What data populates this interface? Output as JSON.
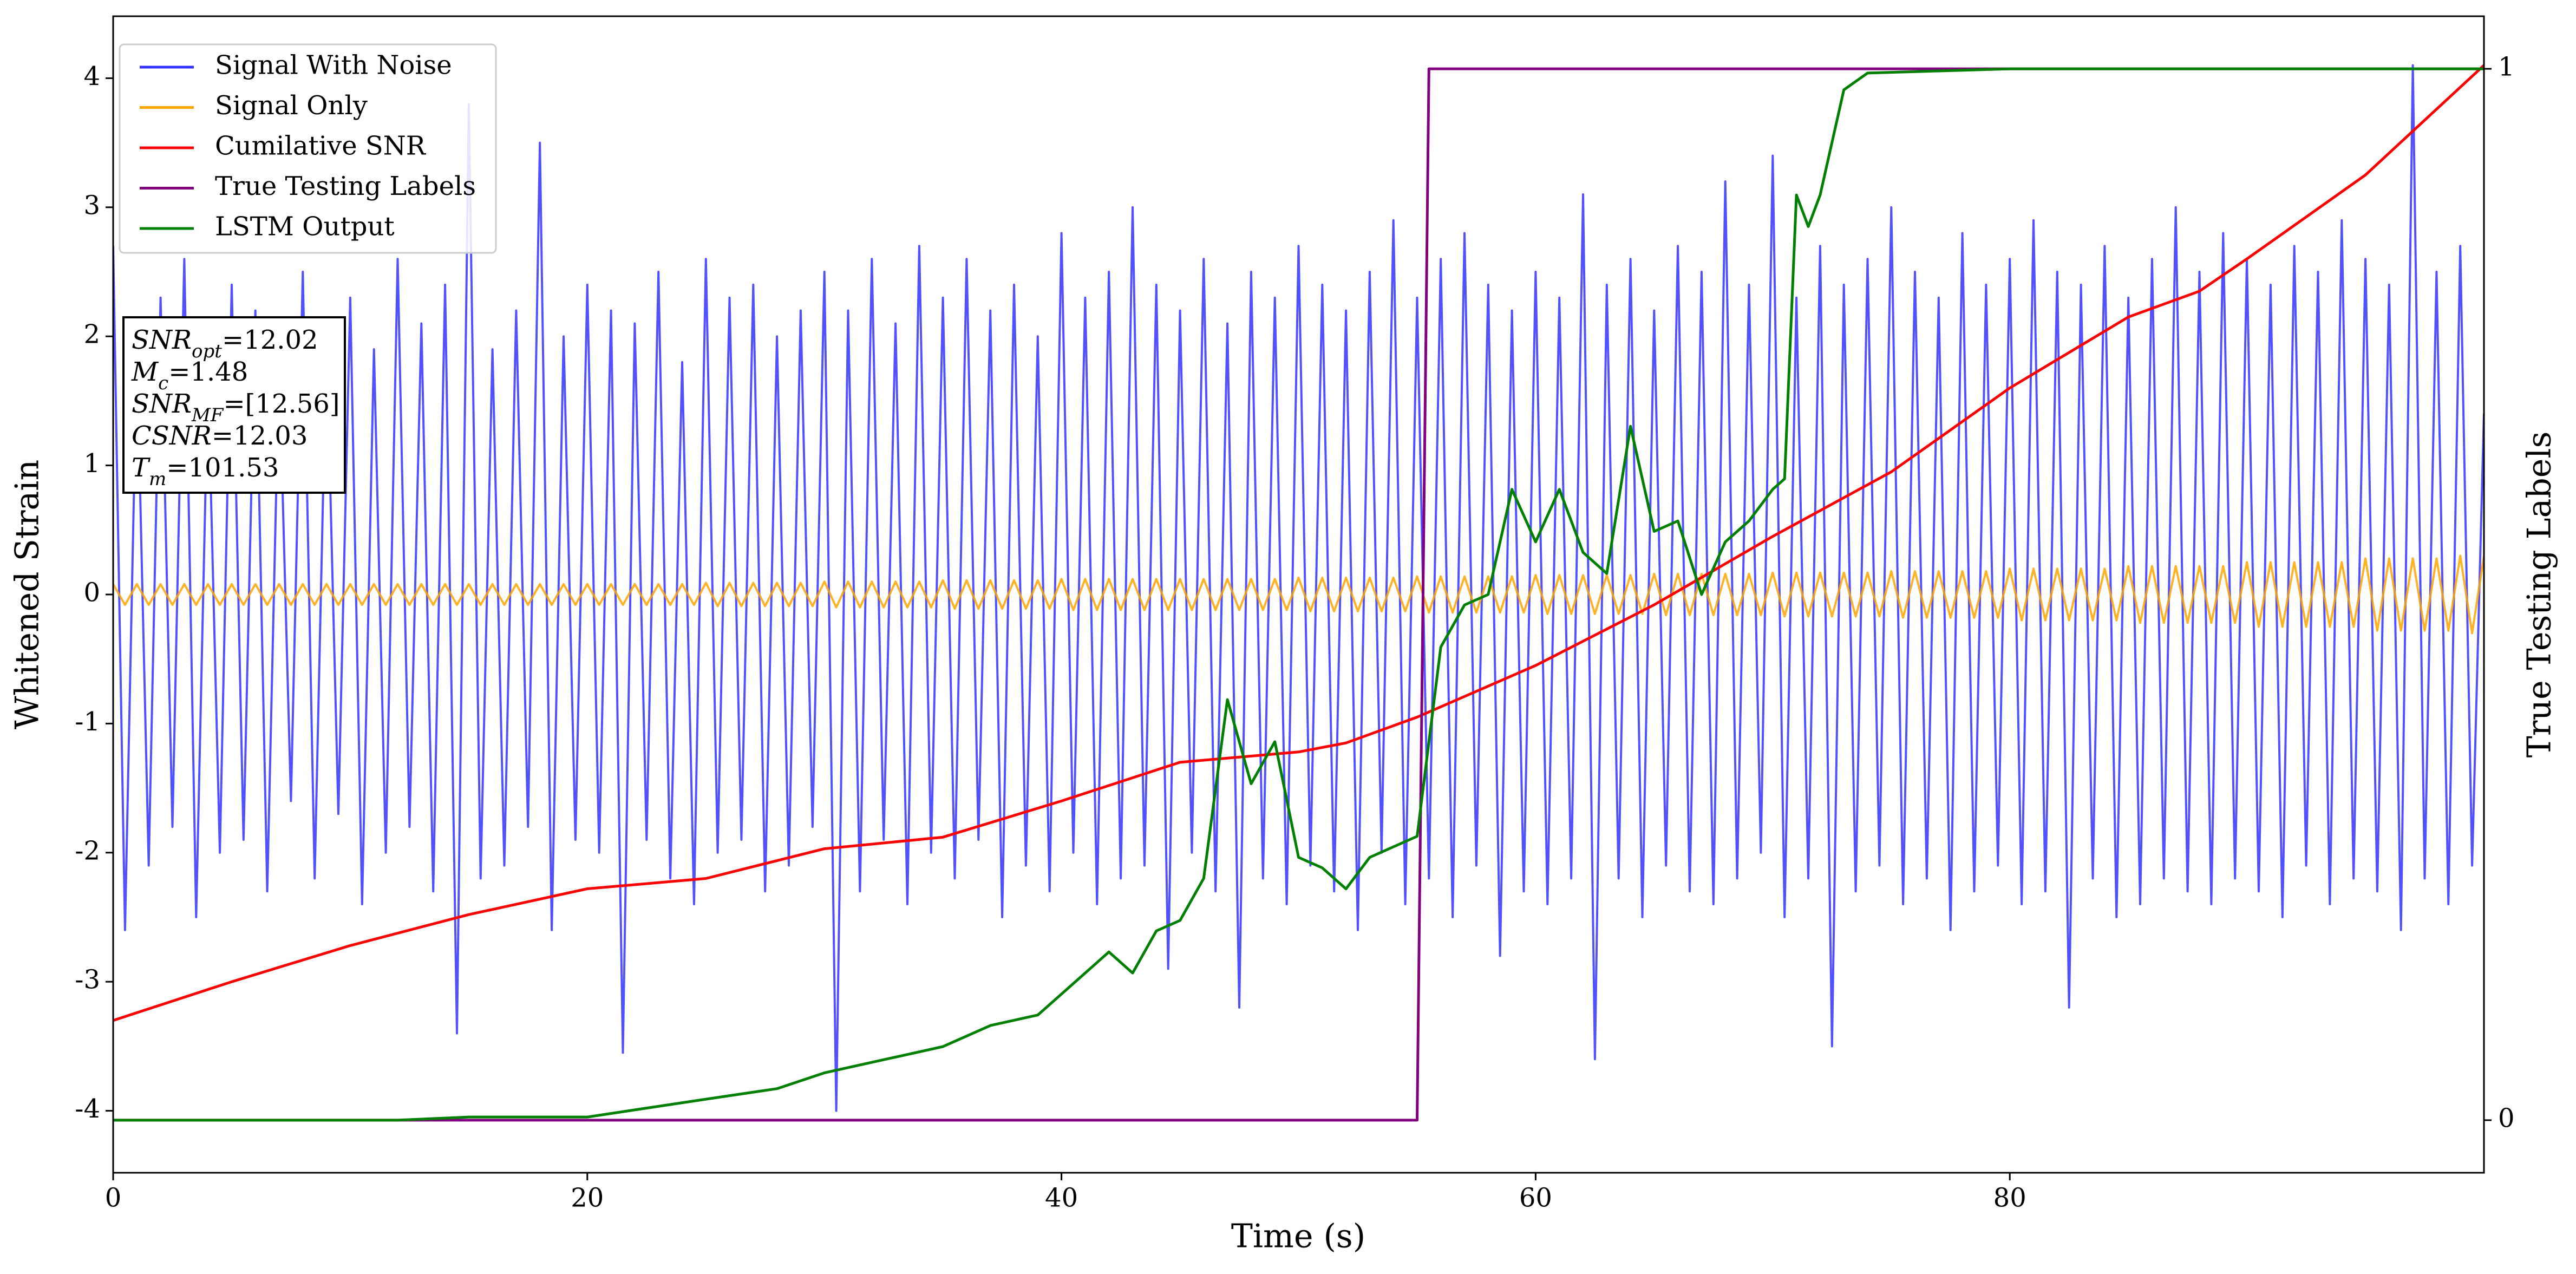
{
  "chart_data": {
    "type": "line",
    "xlabel": "Time (s)",
    "ylabel": "Whitened Strain",
    "y2label": "True Testing Labels",
    "xlim": [
      0,
      100
    ],
    "ylim": [
      -4.48,
      4.48
    ],
    "y2lim": [
      -0.05,
      1.05
    ],
    "xticks": [
      0,
      20,
      40,
      60,
      80
    ],
    "yticks": [
      -4,
      -3,
      -2,
      -1,
      0,
      1,
      2,
      3,
      4
    ],
    "y2ticks": [
      0,
      1
    ],
    "legend": "upper left",
    "x": [
      0,
      0.5,
      1,
      1.5,
      2,
      2.5,
      3,
      3.5,
      4,
      4.5,
      5,
      5.5,
      6,
      6.5,
      7,
      7.5,
      8,
      8.5,
      9,
      9.5,
      10,
      10.5,
      11,
      11.5,
      12,
      12.5,
      13,
      13.5,
      14,
      14.5,
      15,
      15.5,
      16,
      16.5,
      17,
      17.5,
      18,
      18.5,
      19,
      19.5,
      20,
      20.5,
      21,
      21.5,
      22,
      22.5,
      23,
      23.5,
      24,
      24.5,
      25,
      25.5,
      26,
      26.5,
      27,
      27.5,
      28,
      28.5,
      29,
      29.5,
      30,
      30.5,
      31,
      31.5,
      32,
      32.5,
      33,
      33.5,
      34,
      34.5,
      35,
      35.5,
      36,
      36.5,
      37,
      37.5,
      38,
      38.5,
      39,
      39.5,
      40,
      40.5,
      41,
      41.5,
      42,
      42.5,
      43,
      43.5,
      44,
      44.5,
      45,
      45.5,
      46,
      46.5,
      47,
      47.5,
      48,
      48.5,
      49,
      49.5,
      50,
      50.5,
      51,
      51.5,
      52,
      52.5,
      53,
      53.5,
      54,
      54.5,
      55,
      55.5,
      56,
      56.5,
      57,
      57.5,
      58,
      58.5,
      59,
      59.5,
      60,
      60.5,
      61,
      61.5,
      62,
      62.5,
      63,
      63.5,
      64,
      64.5,
      65,
      65.5,
      66,
      66.5,
      67,
      67.5,
      68,
      68.5,
      69,
      69.5,
      70,
      70.5,
      71,
      71.5,
      72,
      72.5,
      73,
      73.5,
      74,
      74.5,
      75,
      75.5,
      76,
      76.5,
      77,
      77.5,
      78,
      78.5,
      79,
      79.5,
      80,
      80.5,
      81,
      81.5,
      82,
      82.5,
      83,
      83.5,
      84,
      84.5,
      85,
      85.5,
      86,
      86.5,
      87,
      87.5,
      88,
      88.5,
      89,
      89.5,
      90,
      90.5,
      91,
      91.5,
      92,
      92.5,
      93,
      93.5,
      94,
      94.5,
      95,
      95.5,
      96,
      96.5,
      97,
      97.5,
      98,
      98.5,
      99,
      99.5,
      100
    ],
    "series": [
      {
        "name": "Signal With Noise",
        "color": "#3333ff",
        "values": [
          2.7,
          -2.6,
          1.9,
          -2.1,
          2.3,
          -1.8,
          2.6,
          -2.5,
          1.7,
          -2.0,
          2.4,
          -1.9,
          2.2,
          -2.3,
          1.8,
          -1.6,
          2.5,
          -2.2,
          2.0,
          -1.7,
          2.3,
          -2.4,
          1.9,
          -2.0,
          2.6,
          -1.8,
          2.1,
          -2.3,
          2.4,
          -3.4,
          3.8,
          -2.2,
          1.9,
          -2.1,
          2.2,
          -1.8,
          3.5,
          -2.6,
          2.0,
          -1.9,
          2.4,
          -2.0,
          2.2,
          -3.55,
          2.1,
          -1.9,
          2.5,
          -2.2,
          1.8,
          -2.4,
          2.6,
          -2.0,
          2.3,
          -1.9,
          2.4,
          -2.3,
          2.0,
          -2.1,
          2.2,
          -1.8,
          2.5,
          -4.0,
          2.2,
          -2.3,
          2.6,
          -1.9,
          2.1,
          -2.4,
          2.7,
          -2.0,
          2.3,
          -2.2,
          2.6,
          -1.9,
          2.2,
          -2.5,
          2.4,
          -2.1,
          2.0,
          -2.3,
          2.8,
          -2.0,
          2.3,
          -2.4,
          2.5,
          -2.2,
          3.0,
          -2.1,
          2.4,
          -2.9,
          2.2,
          -2.0,
          2.6,
          -2.3,
          2.1,
          -3.2,
          2.5,
          -2.2,
          2.3,
          -2.4,
          2.7,
          -2.1,
          2.4,
          -2.3,
          2.2,
          -2.6,
          2.5,
          -2.0,
          2.9,
          -2.4,
          2.3,
          -2.2,
          2.6,
          -2.5,
          2.8,
          -2.1,
          2.4,
          -2.8,
          2.2,
          -2.3,
          2.5,
          -2.4,
          2.3,
          -2.2,
          3.1,
          -3.6,
          2.4,
          -2.2,
          2.6,
          -2.5,
          2.2,
          -2.1,
          2.7,
          -2.3,
          2.5,
          -2.4,
          3.2,
          -2.2,
          2.4,
          -2.0,
          3.4,
          -2.5,
          2.3,
          -2.2,
          2.7,
          -3.5,
          2.4,
          -2.3,
          2.6,
          -2.1,
          3.0,
          -2.4,
          2.5,
          -2.2,
          2.3,
          -2.6,
          2.8,
          -2.3,
          2.4,
          -2.1,
          2.6,
          -2.4,
          2.9,
          -2.3,
          2.5,
          -3.2,
          2.4,
          -2.2,
          2.7,
          -2.5,
          2.3,
          -2.4,
          2.6,
          -2.2,
          3.0,
          -2.3,
          2.5,
          -2.4,
          2.8,
          -2.2,
          2.6,
          -2.3,
          2.4,
          -2.5,
          2.7,
          -2.1,
          2.5,
          -2.4,
          2.9,
          -2.2,
          2.6,
          -2.3,
          2.4,
          -2.6,
          4.1,
          -2.2,
          2.5,
          -2.4,
          2.7,
          -2.1,
          1.4
        ]
      },
      {
        "name": "Signal Only",
        "color": "#ffa500",
        "values": [
          0.08,
          -0.08,
          0.08,
          -0.08,
          0.08,
          -0.08,
          0.08,
          -0.08,
          0.08,
          -0.08,
          0.08,
          -0.08,
          0.08,
          -0.08,
          0.08,
          -0.08,
          0.08,
          -0.08,
          0.08,
          -0.08,
          0.08,
          -0.08,
          0.08,
          -0.08,
          0.08,
          -0.08,
          0.08,
          -0.08,
          0.08,
          -0.08,
          0.08,
          -0.08,
          0.08,
          -0.08,
          0.08,
          -0.08,
          0.08,
          -0.08,
          0.08,
          -0.08,
          0.08,
          -0.08,
          0.08,
          -0.08,
          0.08,
          -0.08,
          0.08,
          -0.08,
          0.08,
          -0.08,
          0.09,
          -0.09,
          0.09,
          -0.09,
          0.09,
          -0.09,
          0.09,
          -0.09,
          0.09,
          -0.09,
          0.1,
          -0.1,
          0.1,
          -0.1,
          0.1,
          -0.1,
          0.1,
          -0.1,
          0.1,
          -0.1,
          0.11,
          -0.11,
          0.11,
          -0.11,
          0.11,
          -0.11,
          0.11,
          -0.11,
          0.11,
          -0.11,
          0.12,
          -0.12,
          0.12,
          -0.12,
          0.12,
          -0.12,
          0.12,
          -0.12,
          0.12,
          -0.12,
          0.12,
          -0.12,
          0.12,
          -0.12,
          0.12,
          -0.12,
          0.12,
          -0.12,
          0.12,
          -0.12,
          0.13,
          -0.13,
          0.13,
          -0.13,
          0.13,
          -0.13,
          0.13,
          -0.13,
          0.13,
          -0.13,
          0.14,
          -0.14,
          0.14,
          -0.14,
          0.14,
          -0.14,
          0.14,
          -0.14,
          0.14,
          -0.14,
          0.15,
          -0.15,
          0.15,
          -0.15,
          0.15,
          -0.15,
          0.15,
          -0.15,
          0.15,
          -0.15,
          0.16,
          -0.16,
          0.16,
          -0.16,
          0.16,
          -0.16,
          0.16,
          -0.16,
          0.16,
          -0.16,
          0.17,
          -0.17,
          0.17,
          -0.17,
          0.17,
          -0.17,
          0.17,
          -0.17,
          0.17,
          -0.17,
          0.18,
          -0.18,
          0.18,
          -0.18,
          0.18,
          -0.18,
          0.18,
          -0.18,
          0.18,
          -0.18,
          0.2,
          -0.2,
          0.2,
          -0.2,
          0.2,
          -0.2,
          0.2,
          -0.2,
          0.2,
          -0.2,
          0.22,
          -0.22,
          0.22,
          -0.22,
          0.22,
          -0.22,
          0.22,
          -0.22,
          0.22,
          -0.22,
          0.25,
          -0.25,
          0.25,
          -0.25,
          0.25,
          -0.25,
          0.25,
          -0.25,
          0.25,
          -0.25,
          0.28,
          -0.28,
          0.28,
          -0.28,
          0.28,
          -0.28,
          0.28,
          -0.28,
          0.3,
          -0.3,
          0.3
        ]
      },
      {
        "name": "Cumilative SNR",
        "color": "#ff0000",
        "x": [
          0,
          5,
          10,
          15,
          20,
          25,
          30,
          35,
          40,
          45,
          50,
          52,
          55,
          60,
          65,
          70,
          75,
          80,
          85,
          88,
          90,
          95,
          100
        ],
        "values": [
          -3.3,
          -3.0,
          -2.72,
          -2.48,
          -2.28,
          -2.2,
          -1.97,
          -1.88,
          -1.6,
          -1.3,
          -1.22,
          -1.15,
          -0.95,
          -0.55,
          -0.08,
          0.45,
          0.95,
          1.6,
          2.15,
          2.35,
          2.6,
          3.25,
          4.1
        ]
      },
      {
        "name": "True Testing Labels",
        "color": "#800080",
        "axis": "y2",
        "x": [
          0,
          55,
          55.5,
          100
        ],
        "values": [
          0,
          0,
          1,
          1
        ]
      },
      {
        "name": "LSTM Output",
        "color": "#008000",
        "axis": "y2",
        "x": [
          0,
          12,
          15,
          20,
          25,
          28,
          30,
          33,
          35,
          37,
          39,
          41,
          42,
          43,
          44,
          45,
          46,
          47,
          48,
          49,
          50,
          51,
          52,
          53,
          54,
          55,
          56,
          57,
          58,
          59,
          60,
          61,
          62,
          63,
          64,
          65,
          66,
          67,
          68,
          69,
          70,
          70.5,
          71,
          71.5,
          72,
          73,
          74,
          80,
          100
        ],
        "values": [
          0,
          0,
          0.003,
          0.003,
          0.02,
          0.03,
          0.045,
          0.06,
          0.07,
          0.09,
          0.1,
          0.14,
          0.16,
          0.14,
          0.18,
          0.19,
          0.23,
          0.4,
          0.32,
          0.36,
          0.25,
          0.24,
          0.22,
          0.25,
          0.26,
          0.27,
          0.45,
          0.49,
          0.5,
          0.6,
          0.55,
          0.6,
          0.54,
          0.52,
          0.66,
          0.56,
          0.57,
          0.5,
          0.55,
          0.57,
          0.6,
          0.61,
          0.88,
          0.85,
          0.88,
          0.98,
          0.996,
          1,
          1
        ]
      }
    ],
    "annotations": [
      {
        "main": "SNR",
        "sub": "opt",
        "rest": "=12.02"
      },
      {
        "main": "M",
        "sub": "c",
        "rest": "=1.48"
      },
      {
        "main": "SNR",
        "sub": "MF",
        "rest": "=[12.56]"
      },
      {
        "main": "CSNR",
        "rest": "=12.03"
      },
      {
        "main": "T",
        "sub": "m",
        "rest": "=101.53"
      }
    ]
  }
}
